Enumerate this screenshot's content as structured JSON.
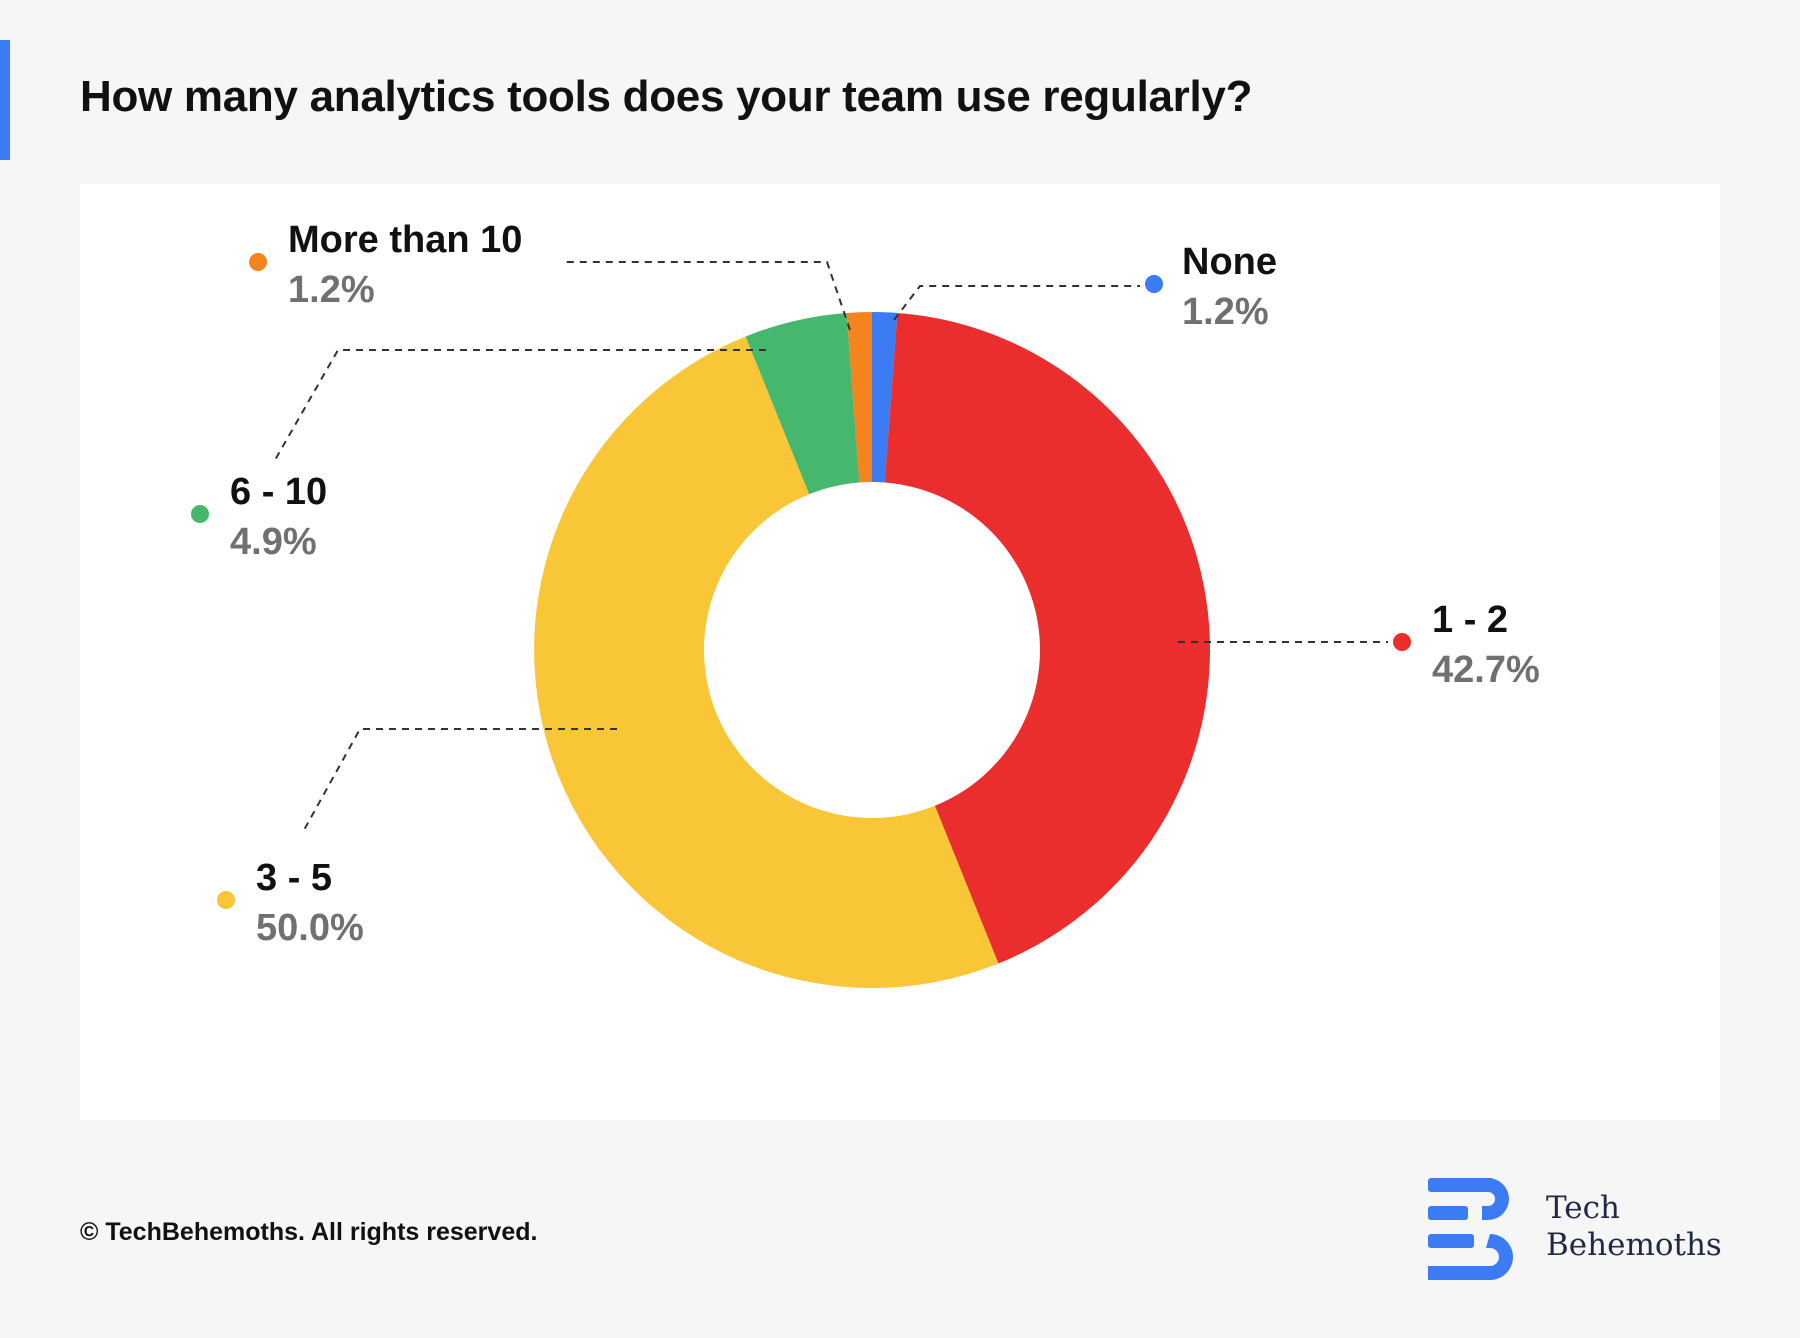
{
  "title": "How many analytics tools does your team use regularly?",
  "chart_data": {
    "type": "pie",
    "donut": true,
    "title": "How many analytics tools does your team use regularly?",
    "slices": [
      {
        "label": "None",
        "value": 1.2,
        "display": "1.2%",
        "color": "#3b7cf4"
      },
      {
        "label": "1 - 2",
        "value": 42.7,
        "display": "42.7%",
        "color": "#ea2e2e"
      },
      {
        "label": "3 - 5",
        "value": 50.0,
        "display": "50.0%",
        "color": "#f9c637"
      },
      {
        "label": "6 - 10",
        "value": 4.9,
        "display": "4.9%",
        "color": "#45b86e"
      },
      {
        "label": "More than 10",
        "value": 1.2,
        "display": "1.2%",
        "color": "#f5841f"
      }
    ]
  },
  "footer": {
    "copyright": "© TechBehemoths. All rights reserved.",
    "brand_line1": "Tech",
    "brand_line2": "Behemoths",
    "logo_icon": "techbehemoths-logo-icon",
    "brand_color": "#3b7cf4"
  }
}
